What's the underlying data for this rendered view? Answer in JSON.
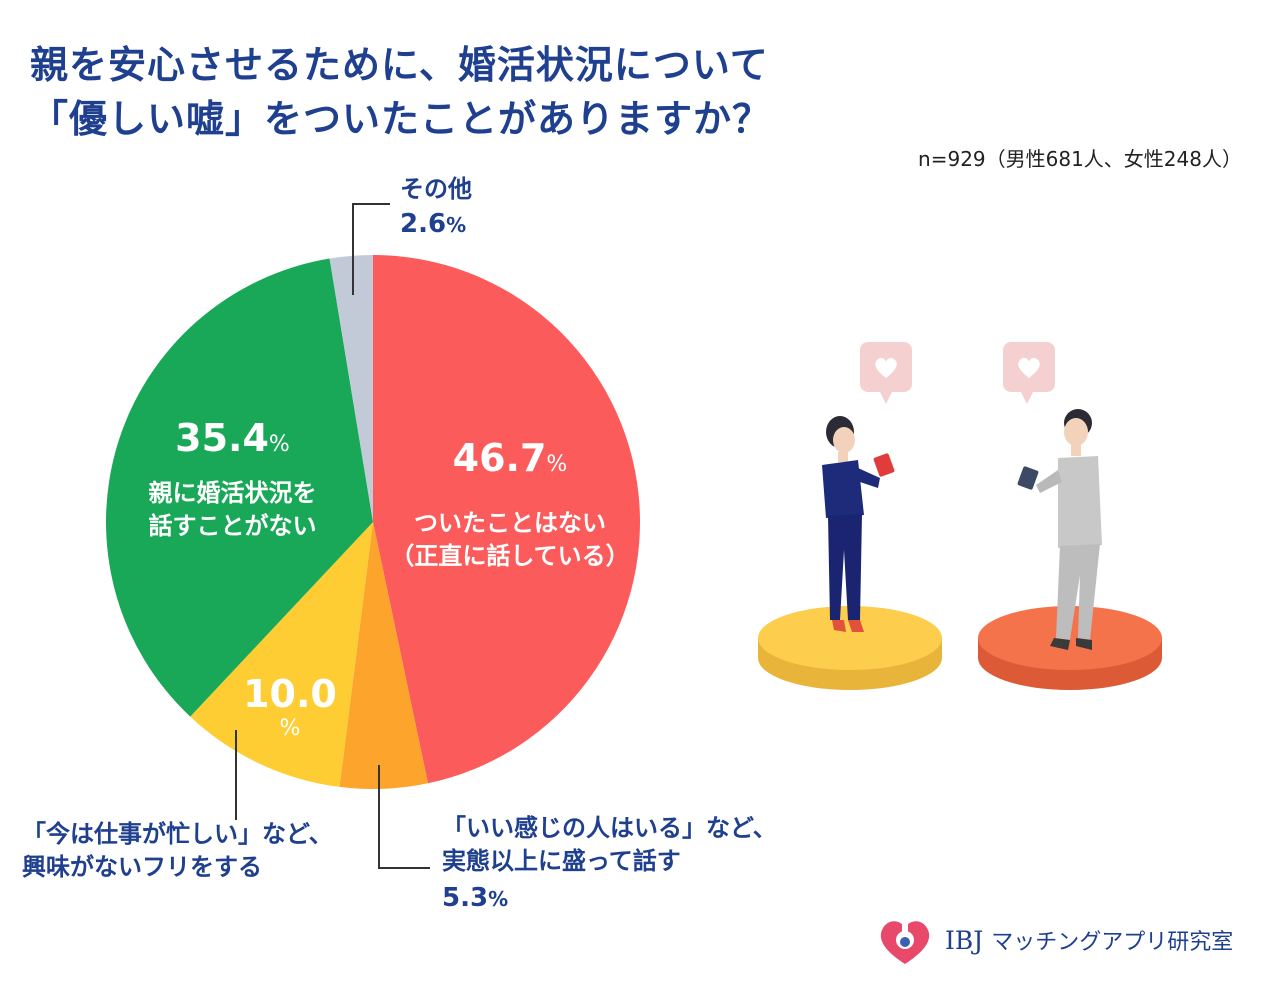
{
  "title_line1": "親を安心させるために、婚活状況について",
  "title_line2": "「優しい嘘」をついたことがありますか？",
  "sample": "n=929（男性681人、女性248人）",
  "logo_ibj": "IBJ",
  "logo_text": "マッチングアプリ研究室",
  "colors": {
    "red": "#fb5b5b",
    "orange": "#fca42c",
    "yellow": "#fdcd33",
    "green": "#19a858",
    "gray": "#c3cad7",
    "title_blue": "#1f3f8f"
  },
  "labels": {
    "s1_value": "46.7",
    "s1_unit": "%",
    "s1_line1": "ついたことはない",
    "s1_line2": "（正直に話している）",
    "s2_line1": "「いい感じの人はいる」など、",
    "s2_line2": "実態以上に盛って話す",
    "s2_value": "5.3",
    "s2_unit": "%",
    "s3_value": "10.0",
    "s3_unit": "%",
    "s3_line1": "「今は仕事が忙しい」など、",
    "s3_line2": "興味がないフリをする",
    "s4_value": "35.4",
    "s4_unit": "%",
    "s4_line1": "親に婚活状況を",
    "s4_line2": "話すことがない",
    "s5_line1": "その他",
    "s5_value": "2.6",
    "s5_unit": "%"
  },
  "chart_data": {
    "type": "pie",
    "title": "親を安心させるために、婚活状況について「優しい嘘」をついたことがありますか？",
    "unit": "%",
    "slices": [
      {
        "label": "ついたことはない（正直に話している）",
        "value": 46.7,
        "color": "#fb5b5b"
      },
      {
        "label": "「いい感じの人はいる」など、実態以上に盛って話す",
        "value": 5.3,
        "color": "#fca42c"
      },
      {
        "label": "「今は仕事が忙しい」など、興味がないフリをする",
        "value": 10.0,
        "color": "#fdcd33"
      },
      {
        "label": "親に婚活状況を話すことがない",
        "value": 35.4,
        "color": "#19a858"
      },
      {
        "label": "その他",
        "value": 2.6,
        "color": "#c3cad7"
      }
    ],
    "start_angle": "12 o'clock",
    "direction": "clockwise"
  }
}
